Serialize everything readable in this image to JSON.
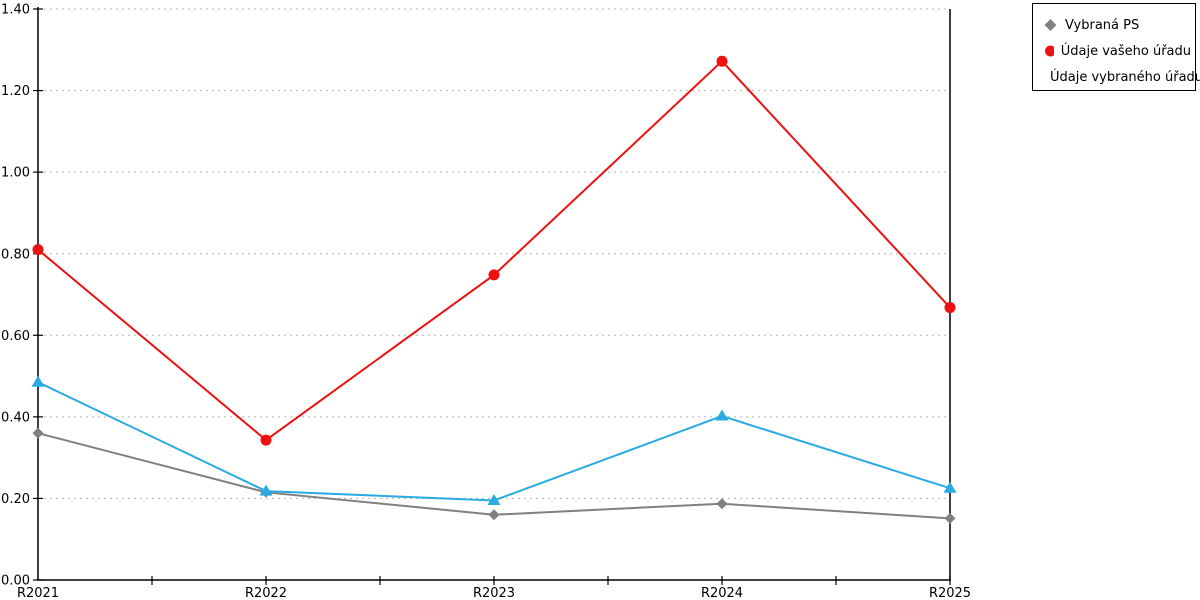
{
  "chart_data": {
    "type": "line",
    "title": "",
    "xlabel": "",
    "ylabel": "",
    "categories": [
      "R2021",
      "R2022",
      "R2023",
      "R2024",
      "R2025"
    ],
    "series": [
      {
        "name": "Vybraná PS",
        "marker": "diamond",
        "color": "#808080",
        "values": [
          0.36,
          0.215,
          0.16,
          0.187,
          0.151
        ]
      },
      {
        "name": "Údaje vašeho úřadu",
        "marker": "circle",
        "color": "#ee1111",
        "values": [
          0.81,
          0.343,
          0.748,
          1.272,
          0.668
        ]
      },
      {
        "name": "Údaje vybraného úřadu",
        "marker": "triangle",
        "color": "#29abe2",
        "values": [
          0.485,
          0.218,
          0.195,
          0.402,
          0.225
        ]
      }
    ],
    "ylim": [
      0,
      1.4
    ],
    "ytick_step": 0.2,
    "ytick_labels": [
      "0.00",
      "0.20",
      "0.40",
      "0.60",
      "0.80",
      "1.00",
      "1.20",
      "1.40"
    ],
    "grid": "horizontal-dashed",
    "legend_position": "top-right",
    "colors": {
      "axis": "#000000",
      "gridline": "#b5b5b5",
      "background": "#ffffff",
      "legend_border": "#000000",
      "text": "#000000"
    }
  }
}
